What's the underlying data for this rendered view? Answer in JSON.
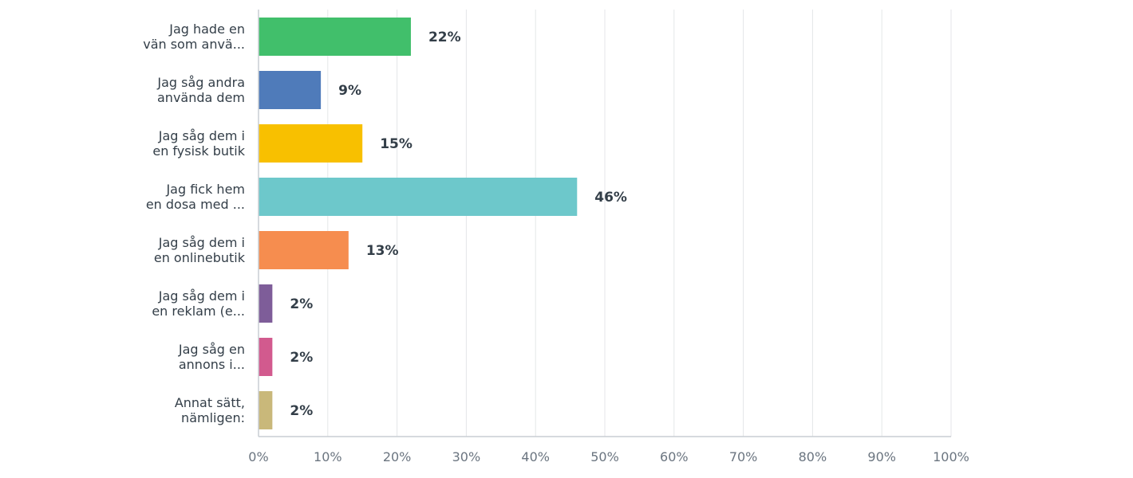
{
  "chart_data": {
    "type": "bar",
    "orientation": "horizontal",
    "categories": [
      "Jag hade en vän som anvä...",
      "Jag såg andra använda dem",
      "Jag såg dem i en fysisk butik",
      "Jag fick hem en dosa med ...",
      "Jag såg dem i en onlinebutik",
      "Jag såg dem i en reklam (e...",
      "Jag såg en annons i...",
      "Annat sätt, nämligen:"
    ],
    "category_lines": [
      [
        "Jag hade en",
        "vän som anvä..."
      ],
      [
        "Jag såg andra",
        "använda dem"
      ],
      [
        "Jag såg dem i",
        "en fysisk butik"
      ],
      [
        "Jag fick hem",
        "en dosa med ..."
      ],
      [
        "Jag såg dem i",
        "en onlinebutik"
      ],
      [
        "Jag såg dem i",
        "en reklam (e..."
      ],
      [
        "Jag såg en",
        "annons i..."
      ],
      [
        "Annat sätt,",
        "nämligen:"
      ]
    ],
    "values": [
      22,
      9,
      15,
      46,
      13,
      2,
      2,
      2
    ],
    "value_labels": [
      "22%",
      "9%",
      "15%",
      "46%",
      "13%",
      "2%",
      "2%",
      "2%"
    ],
    "colors": [
      "#41bf6b",
      "#4f7bba",
      "#f8c000",
      "#6dc8cb",
      "#f68d4f",
      "#7e5d99",
      "#d25a8e",
      "#c9b87a"
    ],
    "xlim": [
      0,
      100
    ],
    "x_ticks": [
      0,
      10,
      20,
      30,
      40,
      50,
      60,
      70,
      80,
      90,
      100
    ],
    "x_tick_labels": [
      "0%",
      "10%",
      "20%",
      "30%",
      "40%",
      "50%",
      "60%",
      "70%",
      "80%",
      "90%",
      "100%"
    ],
    "grid": true,
    "title": "",
    "xlabel": "",
    "ylabel": ""
  }
}
